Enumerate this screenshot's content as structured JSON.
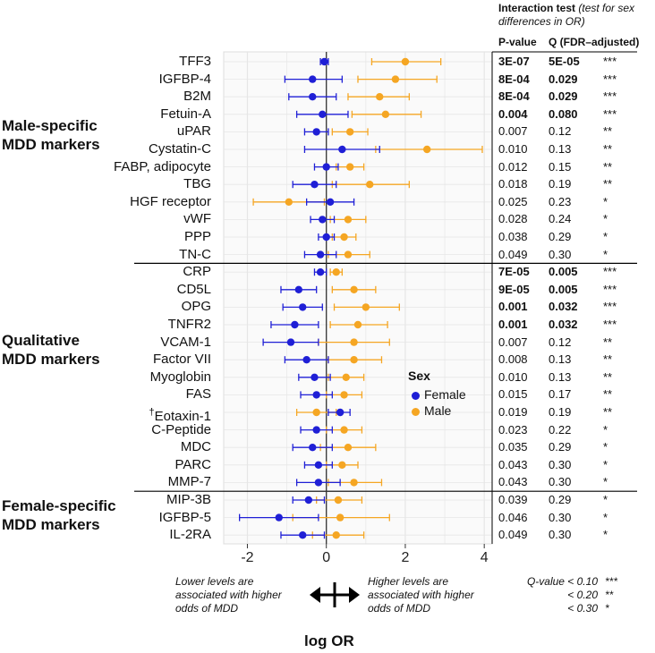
{
  "header": {
    "interaction_title": "Interaction test",
    "interaction_subtitle": "(test for sex differences in OR)",
    "pvalue_col": "P-value",
    "qvalue_col": "Q (FDR–adjusted)"
  },
  "groups": [
    {
      "line1": "Male-specific",
      "line2": "MDD markers"
    },
    {
      "line1": "Qualitative",
      "line2": "MDD markers"
    },
    {
      "line1": "Female-specific",
      "line2": "MDD markers"
    }
  ],
  "legend": {
    "title": "Sex",
    "female": "Female",
    "male": "Male"
  },
  "notes": {
    "lower_1": "Lower levels are",
    "lower_2": "associated with higher",
    "lower_3": "odds of MDD",
    "higher_1": "Higher levels are",
    "higher_2": "associated with higher",
    "higher_3": "odds of MDD",
    "q1": "Q-value < 0.10",
    "q1s": "***",
    "q2": "< 0.20",
    "q2s": "**",
    "q3": "< 0.30",
    "q3s": "*"
  },
  "colors": {
    "female": "#1f1fd6",
    "male": "#f5a623",
    "grid": "#e6e6e6",
    "zero": "#333333"
  },
  "chart_data": {
    "type": "scatter",
    "title": "",
    "xlabel": "log OR",
    "ylabel": "",
    "xlim": [
      -2.6,
      4.2
    ],
    "xticks": [
      -2,
      0,
      2,
      4
    ],
    "markers": [
      {
        "name": "TFF3",
        "group": 0,
        "dagger": "",
        "p": "3E-07",
        "q": "5E-05",
        "stars": "***",
        "bold": true,
        "female": [
          -0.05,
          -0.15,
          0.05
        ],
        "male": [
          2.0,
          1.15,
          2.9
        ]
      },
      {
        "name": "IGFBP-4",
        "group": 0,
        "dagger": "",
        "p": "8E-04",
        "q": "0.029",
        "stars": "***",
        "bold": true,
        "female": [
          -0.35,
          -1.05,
          0.4
        ],
        "male": [
          1.75,
          0.8,
          2.8
        ]
      },
      {
        "name": "B2M",
        "group": 0,
        "dagger": "",
        "p": "8E-04",
        "q": "0.029",
        "stars": "***",
        "bold": true,
        "female": [
          -0.35,
          -0.95,
          0.25
        ],
        "male": [
          1.35,
          0.55,
          2.1
        ]
      },
      {
        "name": "Fetuin-A",
        "group": 0,
        "dagger": "",
        "p": "0.004",
        "q": "0.080",
        "stars": "***",
        "bold": true,
        "female": [
          -0.1,
          -0.75,
          0.55
        ],
        "male": [
          1.5,
          0.65,
          2.4
        ]
      },
      {
        "name": "uPAR",
        "group": 0,
        "dagger": "",
        "p": "0.007",
        "q": "0.12",
        "stars": "**",
        "bold": false,
        "female": [
          -0.25,
          -0.55,
          0.05
        ],
        "male": [
          0.6,
          0.15,
          1.05
        ]
      },
      {
        "name": "Cystatin-C",
        "group": 0,
        "dagger": "",
        "p": "0.010",
        "q": "0.13",
        "stars": "**",
        "bold": false,
        "female": [
          0.4,
          -0.55,
          1.35
        ],
        "male": [
          2.55,
          1.25,
          3.95
        ]
      },
      {
        "name": "FABP, adipocyte",
        "group": 0,
        "dagger": "",
        "p": "0.012",
        "q": "0.15",
        "stars": "**",
        "bold": false,
        "female": [
          0.0,
          -0.3,
          0.3
        ],
        "male": [
          0.6,
          0.25,
          0.95
        ]
      },
      {
        "name": "TBG",
        "group": 0,
        "dagger": "",
        "p": "0.018",
        "q": "0.19",
        "stars": "**",
        "bold": false,
        "female": [
          -0.3,
          -0.85,
          0.25
        ],
        "male": [
          1.1,
          0.15,
          2.1
        ]
      },
      {
        "name": "HGF receptor",
        "group": 0,
        "dagger": "",
        "p": "0.025",
        "q": "0.23",
        "stars": "*",
        "bold": false,
        "female": [
          0.1,
          -0.5,
          0.7
        ],
        "male": [
          -0.95,
          -1.85,
          -0.05
        ]
      },
      {
        "name": "vWF",
        "group": 0,
        "dagger": "",
        "p": "0.028",
        "q": "0.24",
        "stars": "*",
        "bold": false,
        "female": [
          -0.1,
          -0.4,
          0.2
        ],
        "male": [
          0.55,
          0.1,
          1.0
        ]
      },
      {
        "name": "PPP",
        "group": 0,
        "dagger": "",
        "p": "0.038",
        "q": "0.29",
        "stars": "*",
        "bold": false,
        "female": [
          0.0,
          -0.2,
          0.2
        ],
        "male": [
          0.45,
          0.15,
          0.75
        ]
      },
      {
        "name": "TN-C",
        "group": 0,
        "dagger": "",
        "p": "0.049",
        "q": "0.30",
        "stars": "*",
        "bold": false,
        "female": [
          -0.15,
          -0.55,
          0.25
        ],
        "male": [
          0.55,
          0.05,
          1.1
        ]
      },
      {
        "name": "CRP",
        "group": 1,
        "dagger": "",
        "p": "7E-05",
        "q": "0.005",
        "stars": "***",
        "bold": true,
        "female": [
          -0.15,
          -0.3,
          0.0
        ],
        "male": [
          0.25,
          0.1,
          0.4
        ]
      },
      {
        "name": "CD5L",
        "group": 1,
        "dagger": "",
        "p": "9E-05",
        "q": "0.005",
        "stars": "***",
        "bold": true,
        "female": [
          -0.7,
          -1.15,
          -0.25
        ],
        "male": [
          0.7,
          0.15,
          1.25
        ]
      },
      {
        "name": "OPG",
        "group": 1,
        "dagger": "",
        "p": "0.001",
        "q": "0.032",
        "stars": "***",
        "bold": true,
        "female": [
          -0.6,
          -1.1,
          -0.1
        ],
        "male": [
          1.0,
          0.2,
          1.85
        ]
      },
      {
        "name": "TNFR2",
        "group": 1,
        "dagger": "",
        "p": "0.001",
        "q": "0.032",
        "stars": "***",
        "bold": true,
        "female": [
          -0.8,
          -1.4,
          -0.2
        ],
        "male": [
          0.8,
          0.1,
          1.55
        ]
      },
      {
        "name": "VCAM-1",
        "group": 1,
        "dagger": "",
        "p": "0.007",
        "q": "0.12",
        "stars": "**",
        "bold": false,
        "female": [
          -0.9,
          -1.6,
          -0.2
        ],
        "male": [
          0.7,
          -0.2,
          1.6
        ]
      },
      {
        "name": "Factor VII",
        "group": 1,
        "dagger": "",
        "p": "0.008",
        "q": "0.13",
        "stars": "**",
        "bold": false,
        "female": [
          -0.5,
          -1.05,
          0.05
        ],
        "male": [
          0.7,
          0.05,
          1.4
        ]
      },
      {
        "name": "Myoglobin",
        "group": 1,
        "dagger": "",
        "p": "0.010",
        "q": "0.13",
        "stars": "**",
        "bold": false,
        "female": [
          -0.3,
          -0.7,
          0.1
        ],
        "male": [
          0.5,
          0.05,
          0.95
        ]
      },
      {
        "name": "FAS",
        "group": 1,
        "dagger": "",
        "p": "0.015",
        "q": "0.17",
        "stars": "**",
        "bold": false,
        "female": [
          -0.25,
          -0.65,
          0.15
        ],
        "male": [
          0.45,
          0.0,
          0.9
        ]
      },
      {
        "name": "Eotaxin-1",
        "group": 1,
        "dagger": "†",
        "p": "0.019",
        "q": "0.19",
        "stars": "**",
        "bold": false,
        "female": [
          0.35,
          0.05,
          0.6
        ],
        "male": [
          -0.25,
          -0.75,
          0.25
        ]
      },
      {
        "name": "C-Peptide",
        "group": 1,
        "dagger": "",
        "p": "0.023",
        "q": "0.22",
        "stars": "*",
        "bold": false,
        "female": [
          -0.25,
          -0.65,
          0.15
        ],
        "male": [
          0.45,
          0.0,
          0.9
        ]
      },
      {
        "name": "MDC",
        "group": 1,
        "dagger": "",
        "p": "0.035",
        "q": "0.29",
        "stars": "*",
        "bold": false,
        "female": [
          -0.35,
          -0.85,
          0.15
        ],
        "male": [
          0.55,
          -0.15,
          1.25
        ]
      },
      {
        "name": "PARC",
        "group": 1,
        "dagger": "",
        "p": "0.043",
        "q": "0.30",
        "stars": "*",
        "bold": false,
        "female": [
          -0.2,
          -0.55,
          0.15
        ],
        "male": [
          0.4,
          0.0,
          0.8
        ]
      },
      {
        "name": "MMP-7",
        "group": 1,
        "dagger": "",
        "p": "0.043",
        "q": "0.30",
        "stars": "*",
        "bold": false,
        "female": [
          -0.2,
          -0.75,
          0.35
        ],
        "male": [
          0.7,
          0.05,
          1.4
        ]
      },
      {
        "name": "MIP-3B",
        "group": 2,
        "dagger": "",
        "p": "0.039",
        "q": "0.29",
        "stars": "*",
        "bold": false,
        "female": [
          -0.45,
          -0.85,
          -0.05
        ],
        "male": [
          0.3,
          -0.25,
          0.9
        ]
      },
      {
        "name": "IGFBP-5",
        "group": 2,
        "dagger": "",
        "p": "0.046",
        "q": "0.30",
        "stars": "*",
        "bold": false,
        "female": [
          -1.2,
          -2.2,
          -0.2
        ],
        "male": [
          0.35,
          -0.85,
          1.6
        ]
      },
      {
        "name": "IL-2RA",
        "group": 2,
        "dagger": "",
        "p": "0.049",
        "q": "0.30",
        "stars": "*",
        "bold": false,
        "female": [
          -0.6,
          -1.15,
          -0.05
        ],
        "male": [
          0.25,
          -0.35,
          0.95
        ]
      }
    ]
  }
}
